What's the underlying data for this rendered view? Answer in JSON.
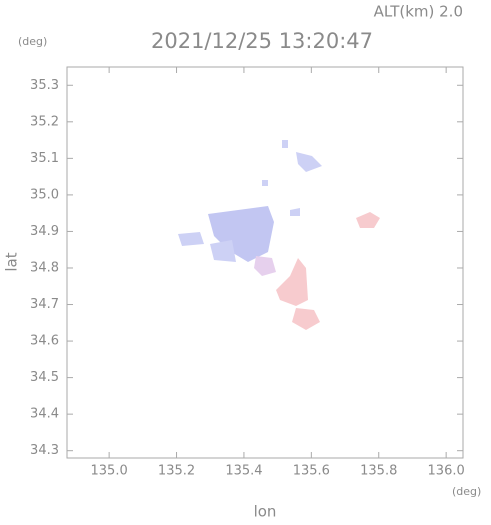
{
  "chart_data": {
    "type": "map",
    "altitude_label": "ALT(km)  2.0",
    "title": "2021/12/25 13:20:47",
    "y_unit": "(deg)",
    "x_unit": "(deg)",
    "ylabel": "lat",
    "xlabel": "lon",
    "xlim": [
      134.875,
      136.05
    ],
    "xticks": [
      {
        "value": 135,
        "label": "135.0"
      },
      135.2,
      135.4,
      135.6,
      135.8,
      {
        "value": 136,
        "label": "136.0"
      }
    ],
    "ylim": [
      34.28,
      35.35
    ],
    "yticks": [
      34.3,
      34.4,
      34.5,
      34.6,
      34.7,
      34.8,
      34.9,
      {
        "value": 35,
        "label": "35.0"
      },
      35.1,
      35.2,
      35.3
    ]
  }
}
